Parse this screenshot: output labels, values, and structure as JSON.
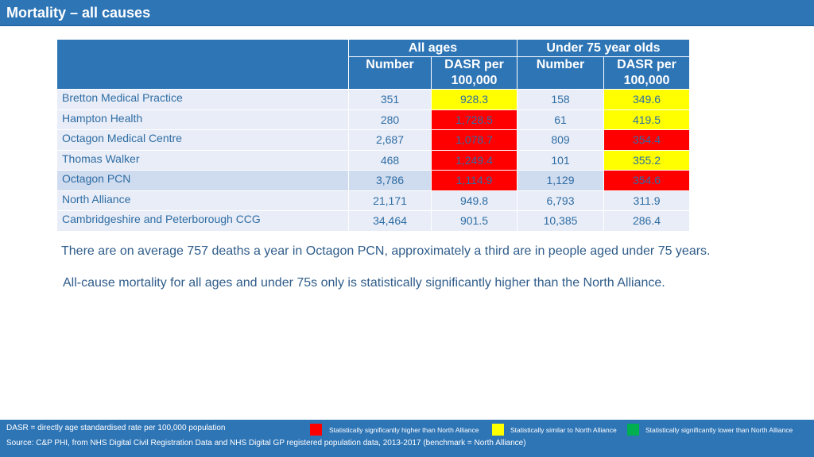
{
  "title": "Mortality – all causes",
  "table": {
    "group_headers": [
      "All ages",
      "Under 75 year olds"
    ],
    "sub_headers": [
      "Number",
      "DASR per 100,000",
      "Number",
      "DASR per 100,000"
    ],
    "rows": [
      {
        "name": "Bretton Medical Practice",
        "all_num": "351",
        "all_dasr": "928.3",
        "all_flag": "yellow",
        "u75_num": "158",
        "u75_dasr": "349.6",
        "u75_flag": "yellow"
      },
      {
        "name": "Hampton Health",
        "all_num": "280",
        "all_dasr": "1,728.5",
        "all_flag": "red",
        "u75_num": "61",
        "u75_dasr": "419.5",
        "u75_flag": "yellow"
      },
      {
        "name": "Octagon Medical Centre",
        "all_num": "2,687",
        "all_dasr": "1,078.7",
        "all_flag": "red",
        "u75_num": "809",
        "u75_dasr": "354.4",
        "u75_flag": "red"
      },
      {
        "name": "Thomas Walker",
        "all_num": "468",
        "all_dasr": "1,249.4",
        "all_flag": "red",
        "u75_num": "101",
        "u75_dasr": "355.2",
        "u75_flag": "yellow"
      },
      {
        "name": "Octagon PCN",
        "all_num": "3,786",
        "all_dasr": "1,114.9",
        "all_flag": "red",
        "u75_num": "1,129",
        "u75_dasr": "354.6",
        "u75_flag": "red"
      },
      {
        "name": "North Alliance",
        "all_num": "21,171",
        "all_dasr": "949.8",
        "all_flag": "none",
        "u75_num": "6,793",
        "u75_dasr": "311.9",
        "u75_flag": "none"
      },
      {
        "name": "Cambridgeshire and Peterborough CCG",
        "all_num": "34,464",
        "all_dasr": "901.5",
        "all_flag": "none",
        "u75_num": "10,385",
        "u75_dasr": "286.4",
        "u75_flag": "none"
      }
    ]
  },
  "notes": [
    "There are on average 757 deaths a year in Octagon PCN, approximately a third are in people aged under 75 years.",
    "All-cause mortality for all ages and under 75s only is statistically significantly higher than the North Alliance."
  ],
  "footer": {
    "definition": "DASR = directly age standardised rate per 100,000 population",
    "source": "Source: C&P PHI, from NHS Digital Civil Registration Data and NHS Digital GP registered population data, 2013-2017 (benchmark = North Alliance)",
    "legend": [
      {
        "color": "#ff0000",
        "label": "Statistically significantly higher than North Alliance"
      },
      {
        "color": "#ffff00",
        "label": "Statistically similar to North Alliance"
      },
      {
        "color": "#00b050",
        "label": "Statistically significantly lower than North Alliance"
      }
    ]
  }
}
